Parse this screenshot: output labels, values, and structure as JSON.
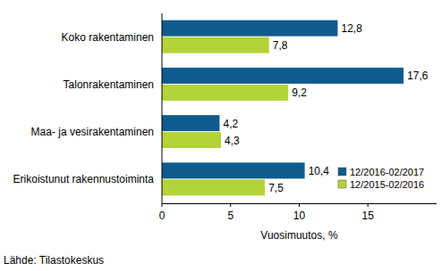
{
  "chart_data": {
    "type": "bar",
    "orientation": "horizontal",
    "categories": [
      "Koko rakentaminen",
      "Talonrakentaminen",
      "Maa- ja vesirakentaminen",
      "Erikoistunut rakennustoiminta"
    ],
    "series": [
      {
        "name": "12/2016-02/2017",
        "color": "#0f5b8e",
        "values": [
          12.8,
          17.6,
          4.2,
          10.4
        ],
        "value_labels": [
          "12,8",
          "17,6",
          "4,2",
          "10,4"
        ]
      },
      {
        "name": "12/2015-02/2016",
        "color": "#b4d23a",
        "values": [
          7.8,
          9.2,
          4.3,
          7.5
        ],
        "value_labels": [
          "7,8",
          "9,2",
          "4,3",
          "7,5"
        ]
      }
    ],
    "x_label": "Vuosimuutos, %",
    "source": "Lähde: Tilastokeskus",
    "xlim": [
      0,
      20
    ],
    "xticks": [
      0,
      5,
      10,
      15
    ],
    "grid": false,
    "legend": "lower right",
    "data_labels": true
  }
}
